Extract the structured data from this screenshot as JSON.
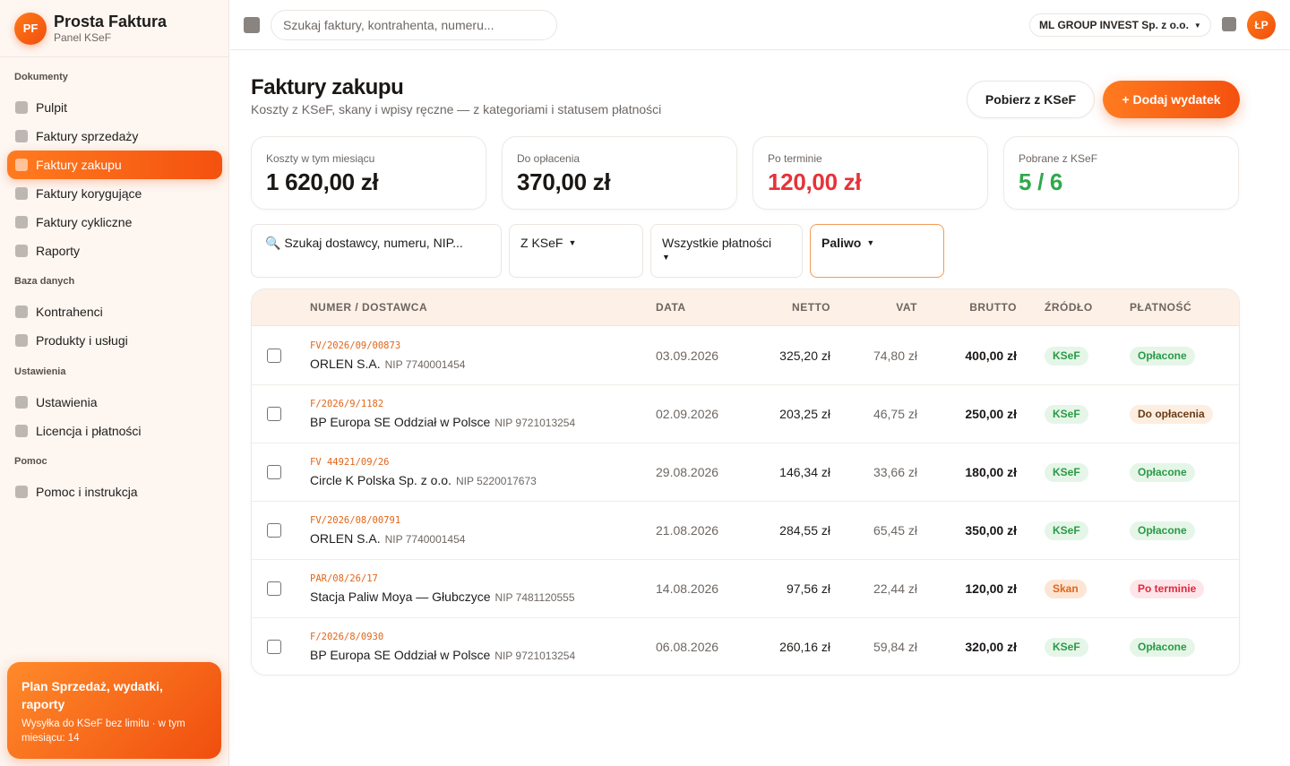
{
  "brand": {
    "logo": "PF",
    "name": "Prosta Faktura",
    "sub": "Panel KSeF"
  },
  "sidebar": {
    "sections": [
      {
        "title": "Dokumenty",
        "items": [
          {
            "label": "Pulpit"
          },
          {
            "label": "Faktury sprzedaży"
          },
          {
            "label": "Faktury zakupu",
            "active": true
          },
          {
            "label": "Faktury korygujące"
          },
          {
            "label": "Faktury cykliczne"
          },
          {
            "label": "Raporty"
          }
        ]
      },
      {
        "title": "Baza danych",
        "items": [
          {
            "label": "Kontrahenci"
          },
          {
            "label": "Produkty i usługi"
          }
        ]
      },
      {
        "title": "Ustawienia",
        "items": [
          {
            "label": "Ustawienia"
          },
          {
            "label": "Licencja i płatności"
          }
        ]
      },
      {
        "title": "Pomoc",
        "items": [
          {
            "label": "Pomoc i instrukcja"
          }
        ]
      }
    ],
    "plan": {
      "title": "Plan Sprzedaż, wydatki, raporty",
      "desc": "Wysyłka do KSeF bez limitu · w tym miesiącu: 14"
    }
  },
  "topbar": {
    "search_placeholder": "Szukaj faktury, kontrahenta, numeru...",
    "company": "ML GROUP INVEST Sp. z o.o.",
    "user_initials": "ŁP"
  },
  "page": {
    "title": "Faktury zakupu",
    "subtitle": "Koszty z KSeF, skany i wpisy ręczne — z kategoriami i statusem płatności",
    "btn_fetch": "Pobierz z KSeF",
    "btn_add": "+ Dodaj wydatek"
  },
  "stats": [
    {
      "label": "Koszty w tym miesiącu",
      "value": "1 620,00 zł",
      "tone": ""
    },
    {
      "label": "Do opłacenia",
      "value": "370,00 zł",
      "tone": ""
    },
    {
      "label": "Po terminie",
      "value": "120,00 zł",
      "tone": "red"
    },
    {
      "label": "Pobrane z KSeF",
      "value": "5 / 6",
      "tone": "green"
    }
  ],
  "filters": {
    "search": "Szukaj dostawcy, numeru, NIP...",
    "source": "Z KSeF",
    "payment": "Wszystkie płatności",
    "category": "Paliwo"
  },
  "table": {
    "headers": {
      "number": "NUMER / DOSTAWCA",
      "date": "DATA",
      "net": "NETTO",
      "vat": "VAT",
      "gross": "BRUTTO",
      "source": "ŹRÓDŁO",
      "payment": "PŁATNOŚĆ"
    },
    "rows": [
      {
        "number": "FV/2026/09/00873",
        "supplier": "ORLEN S.A.",
        "nip": "NIP 7740001454",
        "date": "03.09.2026",
        "net": "325,20 zł",
        "vat": "74,80 zł",
        "gross": "400,00 zł",
        "source": "KSeF",
        "payment": "Opłacone",
        "pay_status": "ok"
      },
      {
        "number": "F/2026/9/1182",
        "supplier": "BP Europa SE Oddział w Polsce",
        "nip": "NIP 9721013254",
        "date": "02.09.2026",
        "net": "203,25 zł",
        "vat": "46,75 zł",
        "gross": "250,00 zł",
        "source": "KSeF",
        "payment": "Do opłacenia",
        "pay_status": "due"
      },
      {
        "number": "FV 44921/09/26",
        "supplier": "Circle K Polska Sp. z o.o.",
        "nip": "NIP 5220017673",
        "date": "29.08.2026",
        "net": "146,34 zł",
        "vat": "33,66 zł",
        "gross": "180,00 zł",
        "source": "KSeF",
        "payment": "Opłacone",
        "pay_status": "ok"
      },
      {
        "number": "FV/2026/08/00791",
        "supplier": "ORLEN S.A.",
        "nip": "NIP 7740001454",
        "date": "21.08.2026",
        "net": "284,55 zł",
        "vat": "65,45 zł",
        "gross": "350,00 zł",
        "source": "KSeF",
        "payment": "Opłacone",
        "pay_status": "ok"
      },
      {
        "number": "PAR/08/26/17",
        "supplier": "Stacja Paliw Moya — Głubczyce",
        "nip": "NIP 7481120555",
        "date": "14.08.2026",
        "net": "97,56 zł",
        "vat": "22,44 zł",
        "gross": "120,00 zł",
        "source": "Skan",
        "payment": "Po terminie",
        "pay_status": "late"
      },
      {
        "number": "F/2026/8/0930",
        "supplier": "BP Europa SE Oddział w Polsce",
        "nip": "NIP 9721013254",
        "date": "06.08.2026",
        "net": "260,16 zł",
        "vat": "59,84 zł",
        "gross": "320,00 zł",
        "source": "KSeF",
        "payment": "Opłacone",
        "pay_status": "ok"
      }
    ]
  }
}
